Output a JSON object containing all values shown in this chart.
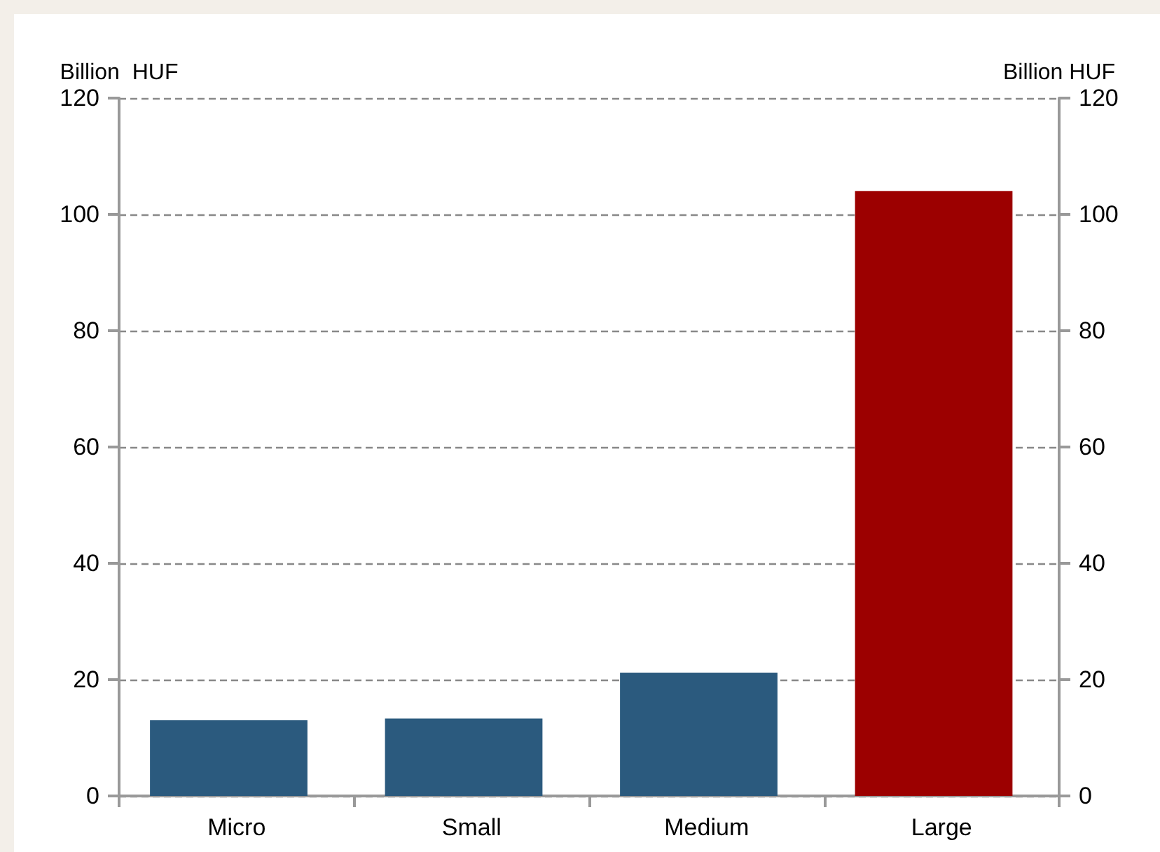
{
  "chart_data": {
    "type": "bar",
    "categories": [
      "Micro",
      "Small",
      "Medium",
      "Large"
    ],
    "values": [
      13.0,
      13.3,
      21.2,
      104.0
    ],
    "colors": [
      "#2b5a7e",
      "#2b5a7e",
      "#2b5a7e",
      "#9c0000"
    ],
    "ylabel": "Billion  HUF",
    "y2label": "Billion HUF",
    "ylim": [
      0,
      120
    ],
    "yticks": [
      0,
      20,
      40,
      60,
      80,
      100,
      120
    ],
    "y2lim": [
      0,
      120
    ],
    "y2ticks": [
      0,
      20,
      40,
      60,
      80,
      100,
      120
    ],
    "grid": "y"
  }
}
